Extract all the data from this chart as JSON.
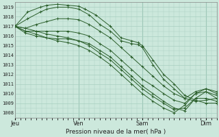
{
  "background_color": "#cce8dc",
  "grid_color": "#a8cfc0",
  "line_color": "#2a5e2a",
  "xlabel": "Pression niveau de la mer( hPa )",
  "xtick_labels": [
    "Jeu",
    "Ven",
    "Sam",
    "Dim"
  ],
  "xtick_positions": [
    0,
    3,
    6,
    9
  ],
  "ylim": [
    1007.5,
    1019.5
  ],
  "yticks": [
    1008,
    1009,
    1010,
    1011,
    1012,
    1013,
    1014,
    1015,
    1016,
    1017,
    1018,
    1019
  ],
  "xlim": [
    0,
    9.5
  ],
  "series": [
    [
      [
        0,
        1017.0
      ],
      [
        0.6,
        1018.5
      ],
      [
        1.2,
        1019.0
      ],
      [
        1.5,
        1019.2
      ],
      [
        2.0,
        1019.3
      ],
      [
        2.5,
        1019.2
      ],
      [
        3.0,
        1019.1
      ],
      [
        3.3,
        1018.8
      ],
      [
        3.8,
        1018.2
      ],
      [
        4.5,
        1017.0
      ],
      [
        5.0,
        1015.8
      ],
      [
        5.5,
        1015.5
      ],
      [
        5.8,
        1015.3
      ],
      [
        6.0,
        1015.0
      ],
      [
        6.5,
        1013.5
      ],
      [
        7.0,
        1012.0
      ],
      [
        7.5,
        1011.0
      ],
      [
        8.0,
        1009.8
      ],
      [
        8.5,
        1009.3
      ],
      [
        9.0,
        1009.0
      ],
      [
        9.5,
        1009.0
      ]
    ],
    [
      [
        0,
        1017.0
      ],
      [
        0.6,
        1017.8
      ],
      [
        1.2,
        1018.5
      ],
      [
        1.5,
        1018.8
      ],
      [
        2.0,
        1019.0
      ],
      [
        2.5,
        1019.0
      ],
      [
        3.0,
        1018.8
      ],
      [
        3.5,
        1018.2
      ],
      [
        4.0,
        1017.2
      ],
      [
        4.5,
        1016.5
      ],
      [
        5.0,
        1015.5
      ],
      [
        5.5,
        1015.2
      ],
      [
        5.8,
        1015.1
      ],
      [
        6.0,
        1014.8
      ],
      [
        6.5,
        1013.0
      ],
      [
        7.0,
        1011.5
      ],
      [
        7.5,
        1010.5
      ],
      [
        8.0,
        1009.5
      ],
      [
        8.5,
        1009.2
      ],
      [
        9.0,
        1009.3
      ],
      [
        9.5,
        1009.5
      ]
    ],
    [
      [
        0,
        1017.0
      ],
      [
        0.5,
        1016.8
      ],
      [
        1.0,
        1017.2
      ],
      [
        1.5,
        1017.5
      ],
      [
        2.0,
        1017.8
      ],
      [
        2.5,
        1017.8
      ],
      [
        3.0,
        1017.7
      ],
      [
        3.5,
        1017.2
      ],
      [
        4.0,
        1016.5
      ],
      [
        4.5,
        1015.8
      ],
      [
        5.0,
        1014.8
      ],
      [
        5.5,
        1013.8
      ],
      [
        6.0,
        1012.8
      ],
      [
        6.5,
        1011.8
      ],
      [
        7.0,
        1010.8
      ],
      [
        7.5,
        1010.0
      ],
      [
        8.0,
        1009.5
      ],
      [
        8.5,
        1010.2
      ],
      [
        9.0,
        1010.5
      ],
      [
        9.5,
        1010.0
      ]
    ],
    [
      [
        0,
        1017.0
      ],
      [
        0.5,
        1016.5
      ],
      [
        1.0,
        1016.5
      ],
      [
        1.5,
        1016.5
      ],
      [
        2.0,
        1016.5
      ],
      [
        2.5,
        1016.5
      ],
      [
        3.0,
        1016.3
      ],
      [
        3.5,
        1016.0
      ],
      [
        4.0,
        1015.2
      ],
      [
        4.5,
        1014.5
      ],
      [
        5.0,
        1013.5
      ],
      [
        5.5,
        1012.5
      ],
      [
        6.0,
        1011.5
      ],
      [
        6.5,
        1010.8
      ],
      [
        7.0,
        1010.0
      ],
      [
        7.5,
        1009.3
      ],
      [
        8.0,
        1009.0
      ],
      [
        8.5,
        1010.0
      ],
      [
        9.0,
        1010.5
      ],
      [
        9.5,
        1010.2
      ]
    ],
    [
      [
        0,
        1017.0
      ],
      [
        0.5,
        1016.3
      ],
      [
        1.0,
        1016.0
      ],
      [
        1.5,
        1015.8
      ],
      [
        2.0,
        1015.7
      ],
      [
        2.5,
        1015.7
      ],
      [
        3.0,
        1015.5
      ],
      [
        3.5,
        1015.2
      ],
      [
        4.0,
        1014.5
      ],
      [
        4.5,
        1013.8
      ],
      [
        5.0,
        1012.8
      ],
      [
        5.5,
        1011.8
      ],
      [
        6.0,
        1010.8
      ],
      [
        6.5,
        1010.0
      ],
      [
        7.0,
        1009.2
      ],
      [
        7.5,
        1008.5
      ],
      [
        8.0,
        1008.2
      ],
      [
        8.5,
        1009.5
      ],
      [
        9.0,
        1010.2
      ],
      [
        9.5,
        1009.8
      ]
    ],
    [
      [
        0,
        1017.0
      ],
      [
        0.5,
        1016.8
      ],
      [
        1.0,
        1016.5
      ],
      [
        1.5,
        1016.2
      ],
      [
        2.0,
        1016.0
      ],
      [
        2.5,
        1015.8
      ],
      [
        3.0,
        1015.5
      ],
      [
        3.5,
        1015.0
      ],
      [
        4.0,
        1014.2
      ],
      [
        4.5,
        1013.5
      ],
      [
        5.0,
        1012.5
      ],
      [
        5.5,
        1011.5
      ],
      [
        6.0,
        1010.5
      ],
      [
        6.5,
        1009.7
      ],
      [
        7.0,
        1009.0
      ],
      [
        7.5,
        1008.3
      ],
      [
        8.0,
        1008.5
      ],
      [
        8.5,
        1009.5
      ],
      [
        9.0,
        1009.5
      ],
      [
        9.5,
        1009.2
      ]
    ],
    [
      [
        0,
        1017.0
      ],
      [
        0.5,
        1016.5
      ],
      [
        1.0,
        1016.2
      ],
      [
        1.5,
        1015.8
      ],
      [
        2.0,
        1015.5
      ],
      [
        2.5,
        1015.3
      ],
      [
        3.0,
        1015.0
      ],
      [
        3.5,
        1014.5
      ],
      [
        4.0,
        1013.8
      ],
      [
        4.5,
        1013.0
      ],
      [
        5.0,
        1012.0
      ],
      [
        5.5,
        1011.0
      ],
      [
        6.0,
        1010.0
      ],
      [
        6.5,
        1009.2
      ],
      [
        7.0,
        1008.5
      ],
      [
        7.5,
        1008.0
      ],
      [
        8.0,
        1008.8
      ],
      [
        8.5,
        1010.0
      ],
      [
        9.0,
        1010.2
      ],
      [
        9.5,
        1009.5
      ]
    ]
  ]
}
